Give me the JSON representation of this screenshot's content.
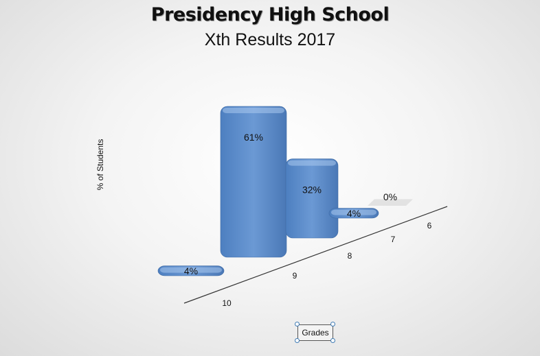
{
  "chart_data": {
    "type": "bar",
    "title": "Presidency High School",
    "subtitle": "Xth Results 2017",
    "xlabel": "Grades",
    "ylabel": "% of Students",
    "categories": [
      "10",
      "9",
      "8",
      "7",
      "6"
    ],
    "values": [
      4,
      61,
      32,
      4,
      0
    ],
    "data_labels": [
      "4%",
      "61%",
      "32%",
      "4%",
      "0%"
    ],
    "ylim": [
      0,
      70
    ],
    "grid": false,
    "legend": "none",
    "style": "3d-bevel",
    "bar_color": "#5b8ccc"
  }
}
